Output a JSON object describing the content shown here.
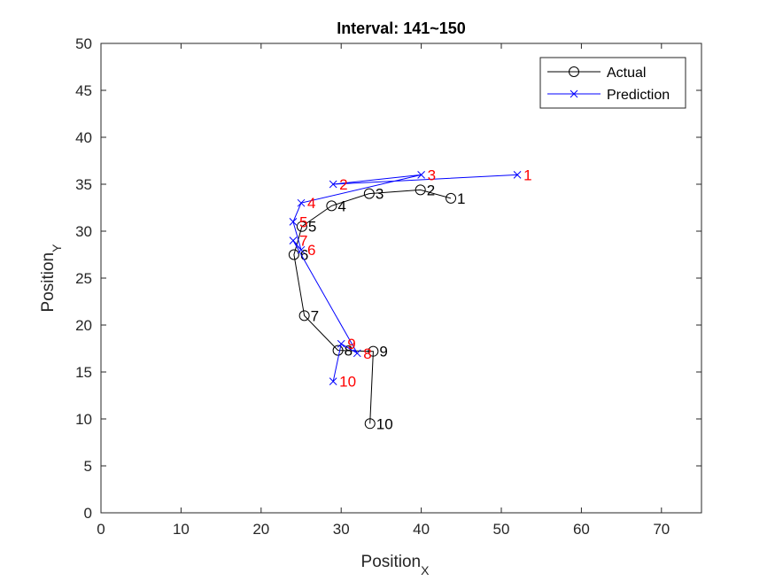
{
  "chart_data": {
    "type": "line",
    "title": "Interval: 141~150",
    "xlabel": "Position",
    "xlabel_sub": "X",
    "ylabel": "Position",
    "ylabel_sub": "Y",
    "xlim": [
      0,
      75
    ],
    "ylim": [
      0,
      50
    ],
    "xticks": [
      0,
      10,
      20,
      30,
      40,
      50,
      60,
      70
    ],
    "yticks": [
      0,
      5,
      10,
      15,
      20,
      25,
      30,
      35,
      40,
      45,
      50
    ],
    "grid": false,
    "legend_position": "top-right",
    "series": [
      {
        "name": "Actual",
        "color": "#000000",
        "marker": "circle",
        "point_labels": [
          "1",
          "2",
          "3",
          "4",
          "5",
          "6",
          "7",
          "8",
          "9",
          "10"
        ],
        "label_color": "#000000",
        "x": [
          43.7,
          39.9,
          33.5,
          28.8,
          25.1,
          24.1,
          25.4,
          29.6,
          34.0,
          33.6
        ],
        "y": [
          33.5,
          34.4,
          34.0,
          32.7,
          30.5,
          27.5,
          21.0,
          17.3,
          17.2,
          9.5
        ]
      },
      {
        "name": "Prediction",
        "color": "#0000ff",
        "marker": "x",
        "point_labels": [
          "1",
          "2",
          "3",
          "4",
          "5",
          "6",
          "7",
          "8",
          "9",
          "10"
        ],
        "label_color": "#ff0000",
        "x": [
          52.0,
          29.0,
          40.0,
          25.0,
          24.0,
          25.0,
          24.0,
          32.0,
          30.0,
          29.0
        ],
        "y": [
          36.0,
          35.0,
          36.0,
          33.0,
          31.0,
          28.0,
          29.0,
          17.0,
          18.0,
          14.0
        ]
      }
    ]
  }
}
